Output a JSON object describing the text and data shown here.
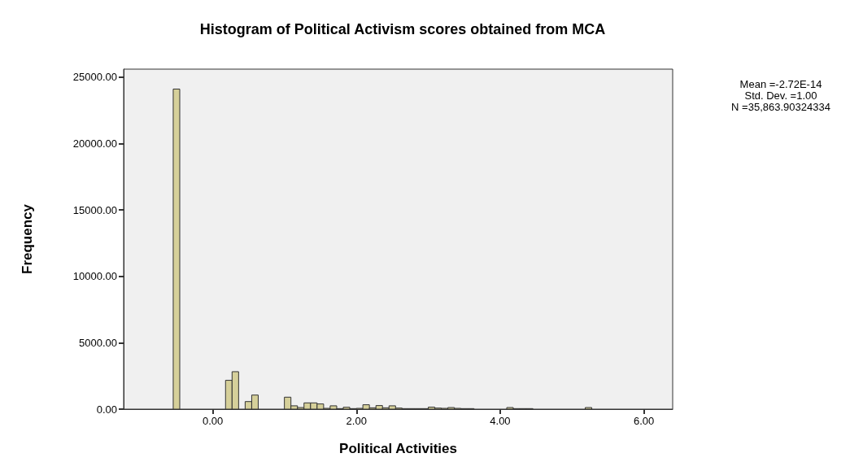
{
  "chart_data": {
    "type": "histogram",
    "title": "Histogram of Political Activism scores obtained from MCA",
    "xlabel": "Political Activities",
    "ylabel": "Frequency",
    "annotations": [
      "Mean =-2.72E-14",
      "Std. Dev. =1.00",
      "N =35,863.90324334"
    ],
    "bins": [
      -0.55,
      -0.459,
      -0.368,
      -0.277,
      -0.186,
      -0.095,
      -0.004,
      0.087,
      0.178,
      0.269,
      0.36,
      0.451,
      0.542,
      0.633,
      0.724,
      0.815,
      0.906,
      0.997,
      1.088,
      1.179,
      1.27,
      1.361,
      1.452,
      1.543,
      1.634,
      1.725,
      1.816,
      1.907,
      1.998,
      2.089,
      2.18,
      2.271,
      2.362,
      2.453,
      2.544,
      2.635,
      2.726,
      2.817,
      2.908,
      2.999,
      3.09,
      3.181,
      3.272,
      3.363,
      3.454,
      3.545,
      3.636,
      3.727,
      3.818,
      3.909,
      4.0,
      4.091,
      4.182,
      4.273,
      4.364,
      4.455,
      4.546,
      4.637,
      4.728,
      4.819,
      4.91,
      5.001,
      5.092,
      5.183,
      5.274,
      5.365
    ],
    "values": [
      24100,
      0,
      0,
      0,
      0,
      0,
      0,
      0,
      2170,
      2820,
      0,
      570,
      1060,
      0,
      0,
      0,
      0,
      900,
      250,
      120,
      470,
      470,
      390,
      60,
      250,
      40,
      140,
      40,
      60,
      330,
      100,
      270,
      100,
      250,
      80,
      40,
      40,
      40,
      40,
      150,
      80,
      60,
      120,
      60,
      40,
      40,
      null,
      null,
      0,
      0,
      0,
      120,
      40,
      40,
      40,
      0,
      0,
      0,
      0,
      0,
      0,
      0,
      0,
      120,
      0
    ],
    "color": "#d6d09a",
    "xlim": [
      -1.24,
      6.4
    ],
    "ylim": [
      0,
      25600
    ],
    "xticks": [
      {
        "value": 0,
        "label": "0.00"
      },
      {
        "value": 2,
        "label": "2.00"
      },
      {
        "value": 4,
        "label": "4.00"
      },
      {
        "value": 6,
        "label": "6.00"
      }
    ],
    "yticks": [
      {
        "value": 0,
        "label": "0.00"
      },
      {
        "value": 5000,
        "label": "5000.00"
      },
      {
        "value": 10000,
        "label": "10000.00"
      },
      {
        "value": 15000,
        "label": "15000.00"
      },
      {
        "value": 20000,
        "label": "20000.00"
      },
      {
        "value": 25000,
        "label": "25000.00"
      }
    ],
    "grid": false
  }
}
